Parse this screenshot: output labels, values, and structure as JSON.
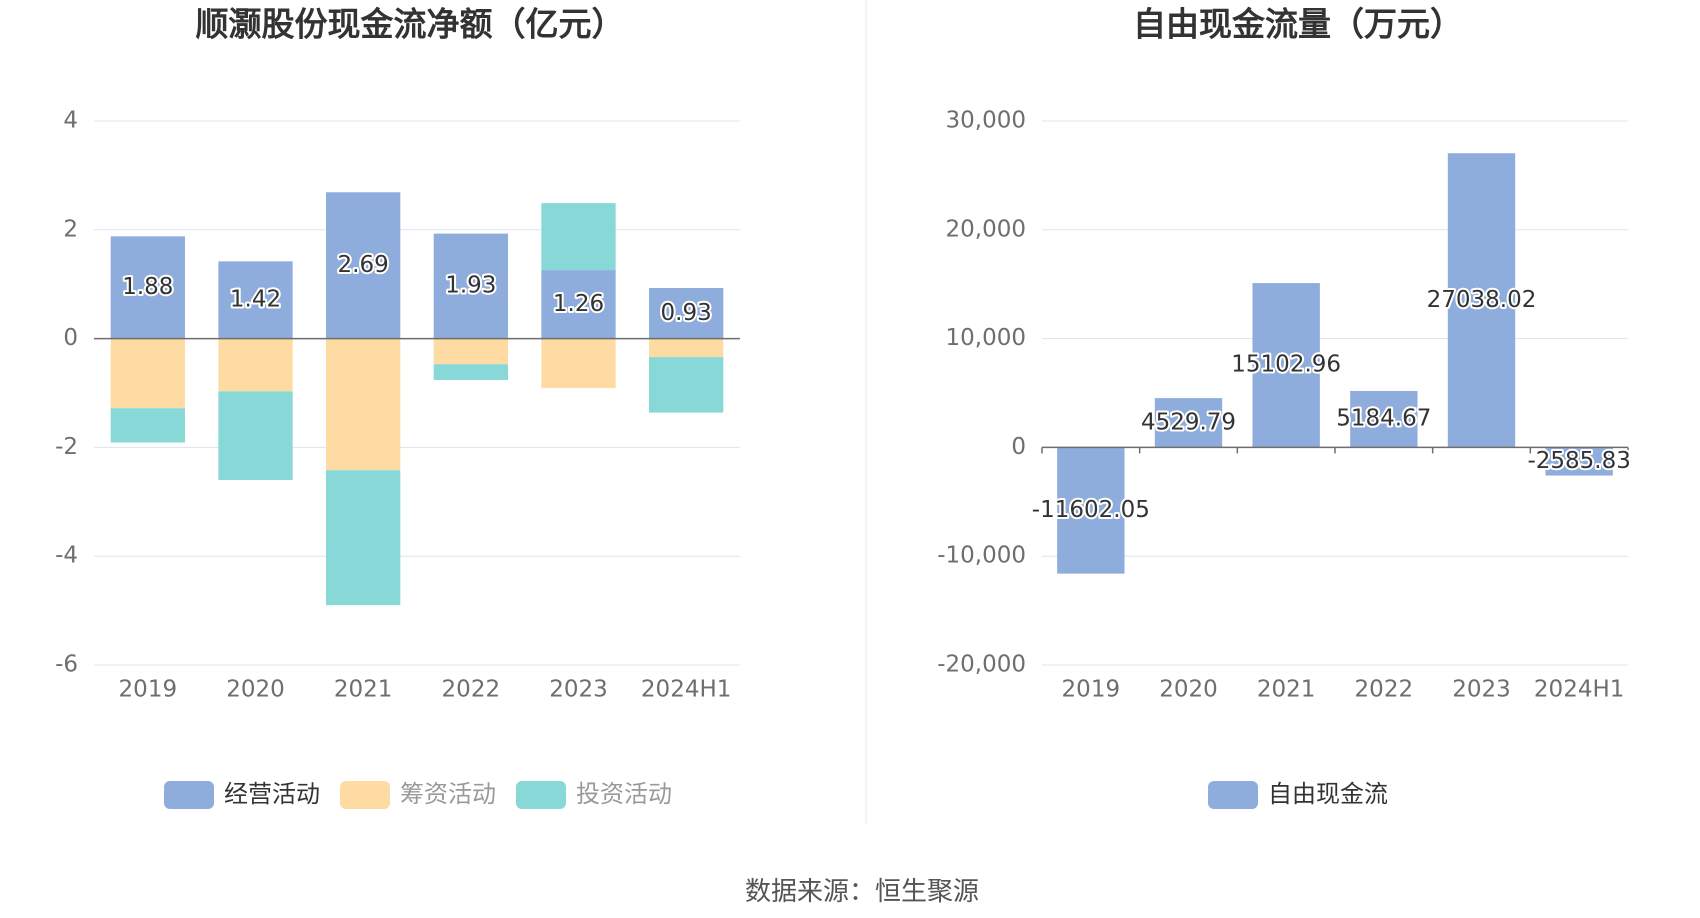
{
  "source_label": "数据来源：恒生聚源",
  "colors": {
    "operating": "#8eaddc",
    "financing": "#fddba2",
    "investing": "#88d8d8",
    "fcf": "#8eaddc",
    "grid": "#dde3ef",
    "axis_text": "#6e6e6e",
    "title_text": "#333333",
    "divider": "#e9e9e9"
  },
  "chart_data": [
    {
      "type": "bar",
      "stacked": true,
      "title": "顺灏股份现金流净额（亿元）",
      "categories": [
        "2019",
        "2020",
        "2021",
        "2022",
        "2023",
        "2024H1"
      ],
      "ylim": [
        -6,
        4
      ],
      "yticks": [
        -6,
        -4,
        -2,
        0,
        2,
        4
      ],
      "ytick_labels": [
        "-6",
        "-4",
        "-2",
        "0",
        "2",
        "4"
      ],
      "grid": true,
      "legend_position": "bottom",
      "series": [
        {
          "name": "经营活动",
          "color_key": "operating",
          "values": [
            1.88,
            1.42,
            2.69,
            1.93,
            1.26,
            0.93
          ],
          "labels": [
            "1.88",
            "1.42",
            "2.69",
            "1.93",
            "1.26",
            "0.93"
          ]
        },
        {
          "name": "筹资活动",
          "color_key": "financing",
          "values": [
            -1.28,
            -0.97,
            -2.42,
            -0.47,
            -0.91,
            -0.34
          ]
        },
        {
          "name": "投资活动",
          "color_key": "investing",
          "values": [
            -0.63,
            -1.63,
            -2.48,
            -0.29,
            1.23,
            -1.02
          ]
        }
      ]
    },
    {
      "type": "bar",
      "stacked": false,
      "title": "自由现金流量（万元）",
      "categories": [
        "2019",
        "2020",
        "2021",
        "2022",
        "2023",
        "2024H1"
      ],
      "ylim": [
        -20000,
        30000
      ],
      "yticks": [
        -20000,
        -10000,
        0,
        10000,
        20000,
        30000
      ],
      "ytick_labels": [
        "-20,000",
        "-10,000",
        "0",
        "10,000",
        "20,000",
        "30,000"
      ],
      "grid": true,
      "legend_position": "bottom",
      "series": [
        {
          "name": "自由现金流",
          "color_key": "fcf",
          "values": [
            -11602.05,
            4529.79,
            15102.96,
            5184.67,
            27038.02,
            -2585.83
          ],
          "labels": [
            "-11602.05",
            "4529.79",
            "15102.96",
            "5184.67",
            "27038.02",
            "-2585.83"
          ]
        }
      ]
    }
  ]
}
